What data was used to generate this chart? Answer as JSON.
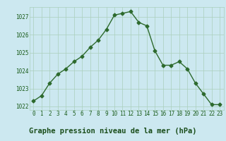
{
  "x": [
    0,
    1,
    2,
    3,
    4,
    5,
    6,
    7,
    8,
    9,
    10,
    11,
    12,
    13,
    14,
    15,
    16,
    17,
    18,
    19,
    20,
    21,
    22,
    23
  ],
  "y": [
    1022.3,
    1022.6,
    1023.3,
    1023.8,
    1024.1,
    1024.5,
    1024.8,
    1025.3,
    1025.7,
    1026.3,
    1027.1,
    1027.2,
    1027.3,
    1026.7,
    1026.5,
    1025.1,
    1024.3,
    1024.3,
    1024.5,
    1024.1,
    1023.3,
    1022.7,
    1022.1,
    1022.1
  ],
  "line_color": "#2d6a2d",
  "marker": "D",
  "marker_size": 2.5,
  "bg_color": "#cce8f0",
  "grid_color": "#aacfbb",
  "xlabel": "Graphe pression niveau de la mer (hPa)",
  "xlabel_color": "#1a4d1a",
  "ylim_min": 1021.8,
  "ylim_max": 1027.55,
  "xlim_min": -0.5,
  "xlim_max": 23.5,
  "yticks": [
    1022,
    1023,
    1024,
    1025,
    1026,
    1027
  ],
  "xticks": [
    0,
    1,
    2,
    3,
    4,
    5,
    6,
    7,
    8,
    9,
    10,
    11,
    12,
    13,
    14,
    15,
    16,
    17,
    18,
    19,
    20,
    21,
    22,
    23
  ],
  "tick_label_color": "#1a5c1a",
  "tick_label_fontsize": 5.5,
  "xlabel_fontsize": 7.5,
  "linewidth": 1.0
}
